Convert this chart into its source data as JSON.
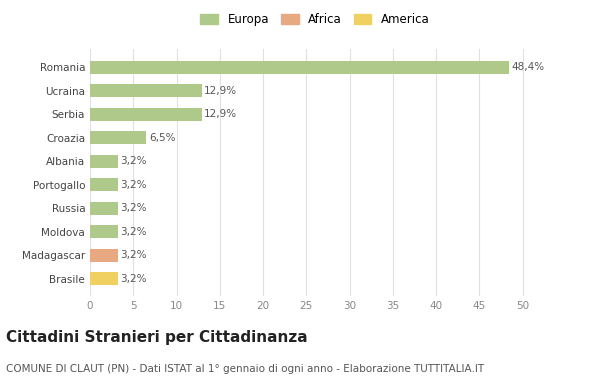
{
  "countries": [
    "Romania",
    "Ucraina",
    "Serbia",
    "Croazia",
    "Albania",
    "Portogallo",
    "Russia",
    "Moldova",
    "Madagascar",
    "Brasile"
  ],
  "values": [
    48.4,
    12.9,
    12.9,
    6.5,
    3.2,
    3.2,
    3.2,
    3.2,
    3.2,
    3.2
  ],
  "labels": [
    "48,4%",
    "12,9%",
    "12,9%",
    "6,5%",
    "3,2%",
    "3,2%",
    "3,2%",
    "3,2%",
    "3,2%",
    "3,2%"
  ],
  "colors": [
    "#aec98a",
    "#aec98a",
    "#aec98a",
    "#aec98a",
    "#aec98a",
    "#aec98a",
    "#aec98a",
    "#aec98a",
    "#e8a882",
    "#f0d060"
  ],
  "legend": [
    {
      "label": "Europa",
      "color": "#aec98a"
    },
    {
      "label": "Africa",
      "color": "#e8a882"
    },
    {
      "label": "America",
      "color": "#f0d060"
    }
  ],
  "xlim": [
    0,
    52
  ],
  "xticks": [
    0,
    5,
    10,
    15,
    20,
    25,
    30,
    35,
    40,
    45,
    50
  ],
  "title": "Cittadini Stranieri per Cittadinanza",
  "subtitle": "COMUNE DI CLAUT (PN) - Dati ISTAT al 1° gennaio di ogni anno - Elaborazione TUTTITALIA.IT",
  "bg_color": "#ffffff",
  "grid_color": "#e0e0e0",
  "bar_height": 0.55,
  "title_fontsize": 11,
  "subtitle_fontsize": 7.5,
  "label_fontsize": 7.5,
  "tick_fontsize": 7.5
}
